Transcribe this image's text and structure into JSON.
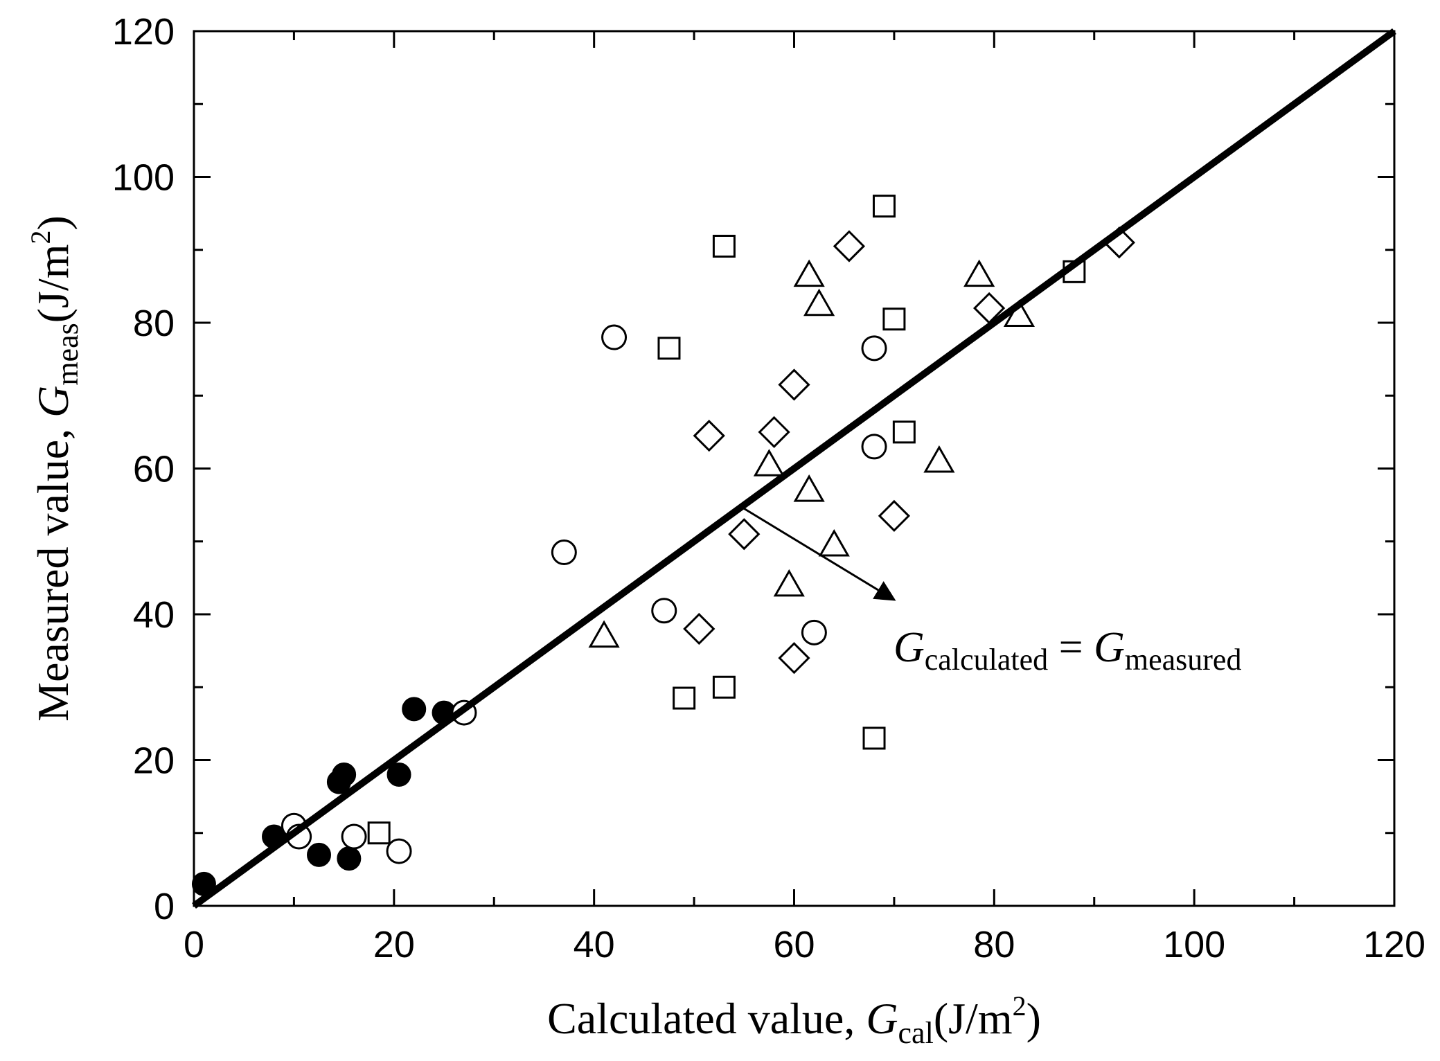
{
  "chart_data": {
    "type": "scatter",
    "title": "",
    "xlabel": {
      "prefix": "Calculated value, ",
      "var": "G",
      "sub": "cal",
      "unit": "(J/m",
      "sup": "2",
      "close": ")"
    },
    "ylabel": {
      "prefix": "Measured value, ",
      "var": "G",
      "sub": "meas",
      "unit": "(J/m",
      "sup": "2",
      "close": ")"
    },
    "xlim": [
      0,
      120
    ],
    "ylim": [
      0,
      120
    ],
    "xticks": [
      "0",
      "20",
      "40",
      "60",
      "80",
      "100",
      "120"
    ],
    "yticks": [
      "0",
      "20",
      "40",
      "60",
      "80",
      "100",
      "120"
    ],
    "grid": false,
    "reference_line": {
      "x": [
        0,
        120
      ],
      "y": [
        0,
        120
      ],
      "label": "G_calculated = G_measured"
    },
    "annotation": {
      "var1": "G",
      "sub1": "calculated",
      "eq": " = ",
      "var2": "G",
      "sub2": "measured",
      "arrow_from": [
        55,
        54.5
      ],
      "arrow_to": [
        70,
        42
      ]
    },
    "series": [
      {
        "name": "filled circles",
        "marker": "circle-filled",
        "points": [
          [
            1,
            3
          ],
          [
            8,
            9.5
          ],
          [
            12.5,
            7
          ],
          [
            14.5,
            17
          ],
          [
            15,
            18
          ],
          [
            15.5,
            6.5
          ],
          [
            20.5,
            18
          ],
          [
            22,
            27
          ],
          [
            25,
            26.5
          ]
        ]
      },
      {
        "name": "open circles",
        "marker": "circle-open",
        "points": [
          [
            10,
            11
          ],
          [
            10.5,
            9.5
          ],
          [
            16,
            9.5
          ],
          [
            20.5,
            7.5
          ],
          [
            27,
            26.5
          ],
          [
            37,
            48.5
          ],
          [
            42,
            78
          ],
          [
            47,
            40.5
          ],
          [
            62,
            37.5
          ],
          [
            68,
            76.5
          ],
          [
            68,
            63
          ]
        ]
      },
      {
        "name": "open squares",
        "marker": "square-open",
        "points": [
          [
            18.5,
            10
          ],
          [
            47.5,
            76.5
          ],
          [
            49,
            28.5
          ],
          [
            53,
            30
          ],
          [
            53,
            90.5
          ],
          [
            68,
            23
          ],
          [
            69,
            96
          ],
          [
            70,
            80.5
          ],
          [
            71,
            65
          ],
          [
            88,
            87
          ]
        ]
      },
      {
        "name": "open triangles",
        "marker": "triangle-open",
        "points": [
          [
            41,
            37
          ],
          [
            57.5,
            60.5
          ],
          [
            59.5,
            44
          ],
          [
            61.5,
            86.5
          ],
          [
            61.5,
            57
          ],
          [
            62.5,
            82.5
          ],
          [
            64,
            49.5
          ],
          [
            74.5,
            61
          ],
          [
            78.5,
            86.5
          ],
          [
            82.5,
            81
          ]
        ]
      },
      {
        "name": "open diamonds",
        "marker": "diamond-open",
        "points": [
          [
            50.5,
            38
          ],
          [
            51.5,
            64.5
          ],
          [
            55,
            51
          ],
          [
            58,
            65
          ],
          [
            60,
            34
          ],
          [
            60,
            71.5
          ],
          [
            65.5,
            90.5
          ],
          [
            70,
            53.5
          ],
          [
            79.5,
            82
          ],
          [
            92.5,
            91
          ]
        ]
      }
    ]
  }
}
